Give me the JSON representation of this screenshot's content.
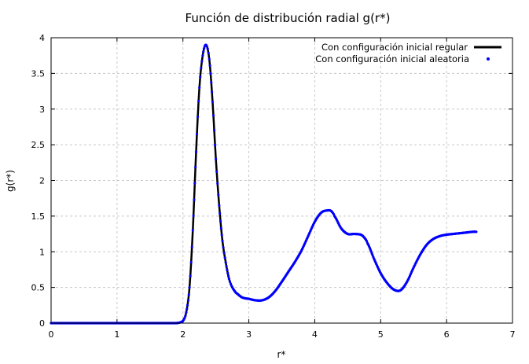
{
  "chart_data": {
    "type": "line",
    "title": "Función de distribución radial g(r*)",
    "xlabel": "r*",
    "ylabel": "g(r*)",
    "xlim": [
      0,
      7
    ],
    "ylim": [
      0,
      4
    ],
    "xticks": [
      "0",
      "1",
      "2",
      "3",
      "4",
      "5",
      "6",
      "7"
    ],
    "yticks": [
      "0",
      "0.5",
      "1",
      "1.5",
      "2",
      "2.5",
      "3",
      "3.5",
      "4"
    ],
    "grid": true,
    "legend_position": "top-right",
    "series": [
      {
        "name": "Con configuración inicial regular",
        "style": "line",
        "color": "#000000",
        "x": [
          0,
          0.5,
          1.0,
          1.5,
          1.9,
          2.0,
          2.05,
          2.1,
          2.15,
          2.2,
          2.25,
          2.3,
          2.35,
          2.4,
          2.45,
          2.5,
          2.55,
          2.6,
          2.65,
          2.7,
          2.75,
          2.8,
          2.9,
          3.0,
          3.1,
          3.2,
          3.3,
          3.4,
          3.5,
          3.6,
          3.7,
          3.8,
          3.9,
          4.0,
          4.1,
          4.2,
          4.25,
          4.3,
          4.4,
          4.5,
          4.6,
          4.7,
          4.75,
          4.8,
          4.9,
          5.0,
          5.1,
          5.2,
          5.3,
          5.4,
          5.5,
          5.6,
          5.7,
          5.8,
          5.9,
          6.0,
          6.1,
          6.2,
          6.3,
          6.4,
          6.45
        ],
        "y": [
          0,
          0,
          0,
          0,
          0.0,
          0.03,
          0.15,
          0.5,
          1.3,
          2.4,
          3.3,
          3.75,
          3.9,
          3.7,
          3.1,
          2.3,
          1.65,
          1.15,
          0.85,
          0.62,
          0.5,
          0.43,
          0.36,
          0.34,
          0.32,
          0.32,
          0.36,
          0.45,
          0.58,
          0.72,
          0.86,
          1.02,
          1.22,
          1.42,
          1.55,
          1.58,
          1.57,
          1.5,
          1.33,
          1.25,
          1.25,
          1.24,
          1.2,
          1.12,
          0.9,
          0.7,
          0.56,
          0.47,
          0.46,
          0.58,
          0.78,
          0.96,
          1.1,
          1.18,
          1.22,
          1.24,
          1.25,
          1.26,
          1.27,
          1.28,
          1.28
        ]
      },
      {
        "name": "Con configuración inicial aleatoria",
        "style": "points",
        "color": "#0000ff",
        "x": [
          0,
          0.5,
          1.0,
          1.5,
          1.9,
          2.0,
          2.05,
          2.1,
          2.15,
          2.2,
          2.25,
          2.3,
          2.35,
          2.4,
          2.45,
          2.5,
          2.55,
          2.6,
          2.65,
          2.7,
          2.75,
          2.8,
          2.9,
          3.0,
          3.1,
          3.2,
          3.3,
          3.4,
          3.5,
          3.6,
          3.7,
          3.8,
          3.9,
          4.0,
          4.1,
          4.2,
          4.25,
          4.3,
          4.4,
          4.5,
          4.6,
          4.7,
          4.75,
          4.8,
          4.9,
          5.0,
          5.1,
          5.2,
          5.3,
          5.4,
          5.5,
          5.6,
          5.7,
          5.8,
          5.9,
          6.0,
          6.1,
          6.2,
          6.3,
          6.4,
          6.45
        ],
        "y": [
          0,
          0,
          0,
          0,
          0.0,
          0.03,
          0.15,
          0.5,
          1.3,
          2.4,
          3.3,
          3.75,
          3.9,
          3.7,
          3.1,
          2.3,
          1.65,
          1.15,
          0.85,
          0.62,
          0.5,
          0.43,
          0.36,
          0.34,
          0.32,
          0.32,
          0.36,
          0.45,
          0.58,
          0.72,
          0.86,
          1.02,
          1.22,
          1.42,
          1.55,
          1.58,
          1.57,
          1.5,
          1.33,
          1.25,
          1.25,
          1.24,
          1.2,
          1.12,
          0.9,
          0.7,
          0.56,
          0.47,
          0.46,
          0.58,
          0.78,
          0.96,
          1.1,
          1.18,
          1.22,
          1.24,
          1.25,
          1.26,
          1.27,
          1.28,
          1.28
        ]
      }
    ]
  }
}
